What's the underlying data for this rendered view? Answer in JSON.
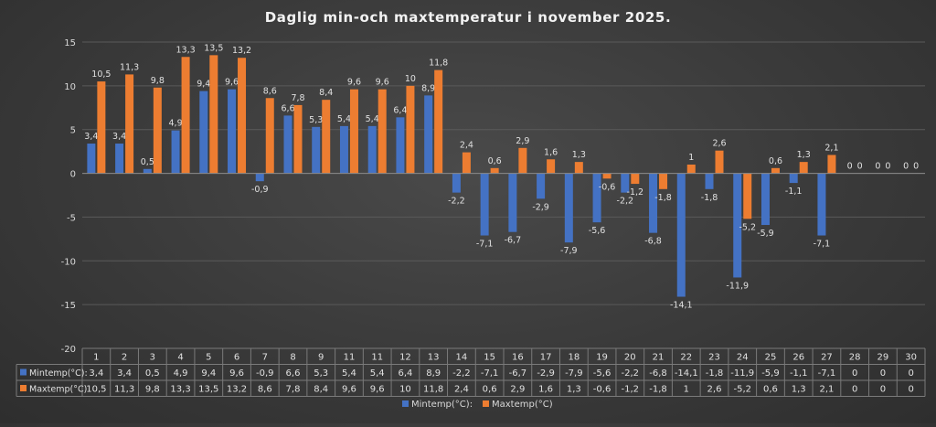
{
  "chart_data": {
    "type": "bar",
    "title": "Daglig min-och maxtemperatur i november 2025.",
    "categories": [
      "1",
      "2",
      "3",
      "4",
      "5",
      "6",
      "7",
      "8",
      "9",
      "11",
      "11",
      "12",
      "13",
      "14",
      "15",
      "16",
      "17",
      "18",
      "19",
      "20",
      "21",
      "22",
      "23",
      "24",
      "25",
      "26",
      "27",
      "28",
      "29",
      "30"
    ],
    "series": [
      {
        "name": "Mintemp(°C):",
        "color": "#4472c4",
        "values": [
          3.4,
          3.4,
          0.5,
          4.9,
          9.4,
          9.6,
          -0.9,
          6.6,
          5.3,
          5.4,
          5.4,
          6.4,
          8.9,
          -2.2,
          -7.1,
          -6.7,
          -2.9,
          -7.9,
          -5.6,
          -2.2,
          -6.8,
          -14.1,
          -1.8,
          -11.9,
          -5.9,
          -1.1,
          -7.1,
          0,
          0,
          0
        ],
        "labels": [
          "3,4",
          "3,4",
          "0,5",
          "4,9",
          "9,4",
          "9,6",
          "-0,9",
          "6,6",
          "5,3",
          "5,4",
          "5,4",
          "6,4",
          "8,9",
          "-2,2",
          "-7,1",
          "-6,7",
          "-2,9",
          "-7,9",
          "-5,6",
          "-2,2",
          "-6,8",
          "-14,1",
          "-1,8",
          "-11,9",
          "-5,9",
          "-1,1",
          "-7,1",
          "0",
          "0",
          "0"
        ]
      },
      {
        "name": "Maxtemp(°C)",
        "color": "#ed7d31",
        "values": [
          10.5,
          11.3,
          9.8,
          13.3,
          13.5,
          13.2,
          8.6,
          7.8,
          8.4,
          9.6,
          9.6,
          10,
          11.8,
          2.4,
          0.6,
          2.9,
          1.6,
          1.3,
          -0.6,
          -1.2,
          -1.8,
          1,
          2.6,
          -5.2,
          0.6,
          1.3,
          2.1,
          0,
          0,
          0
        ],
        "labels": [
          "10,5",
          "11,3",
          "9,8",
          "13,3",
          "13,5",
          "13,2",
          "8,6",
          "7,8",
          "8,4",
          "9,6",
          "9,6",
          "10",
          "11,8",
          "2,4",
          "0,6",
          "2,9",
          "1,6",
          "1,3",
          "-0,6",
          "-1,2",
          "-1,8",
          "1",
          "2,6",
          "-5,2",
          "0,6",
          "1,3",
          "2,1",
          "0",
          "0",
          "0"
        ]
      }
    ],
    "ylim": [
      -20,
      15
    ],
    "yticks": [
      15,
      10,
      5,
      0,
      -5,
      -10,
      -15,
      -20
    ],
    "ytick_labels": [
      "15",
      "10",
      "5",
      "0",
      "-5",
      "-10",
      "-15",
      "-20"
    ],
    "grid": true,
    "legend": "bottom",
    "data_table": true
  }
}
